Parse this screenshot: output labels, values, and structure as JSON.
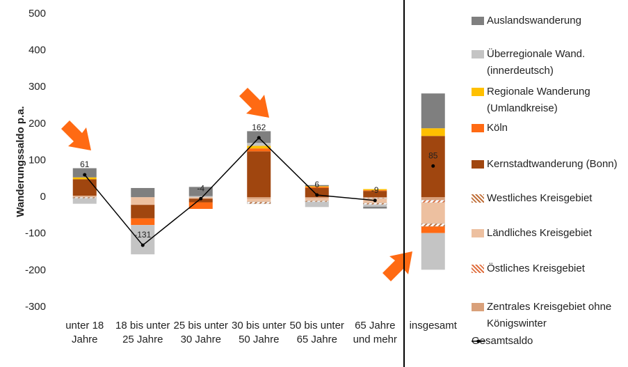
{
  "chart_data": {
    "type": "bar",
    "stacked": true,
    "y_label": "Wanderungssaldo p.a.",
    "categories": [
      "unter 18 Jahre",
      "18 bis unter 25 Jahre",
      "25 bis unter 30 Jahre",
      "30 bis unter 50 Jahre",
      "50 bis unter 65 Jahre",
      "65 Jahre und mehr",
      "insgesamt"
    ],
    "series": [
      {
        "name": "Auslandswanderung",
        "color": "#7f7f7f",
        "values": [
          25,
          25,
          25,
          32,
          3,
          -5,
          95
        ]
      },
      {
        "name": "Überregionale Wand. (innerdeutsch)",
        "color": "#c4c4c4",
        "values": [
          -15,
          -80,
          3,
          8,
          -14,
          -6,
          -100
        ]
      },
      {
        "name": "Regionale Wanderung (Umlandkreise)",
        "color": "#ffc000",
        "values": [
          5,
          0,
          0,
          7,
          2,
          3,
          21
        ]
      },
      {
        "name": "Köln",
        "color": "#ff6a13",
        "values": [
          0,
          -18,
          -18,
          8,
          3,
          2,
          -18
        ]
      },
      {
        "name": "Kernstadtwanderung (Bonn)",
        "color": "#a0460f",
        "values": [
          45,
          -37,
          -10,
          125,
          25,
          17,
          167
        ]
      },
      {
        "name": "Westliches Kreisgebiet",
        "color": "#c0703a",
        "hatch": true,
        "values": [
          -3,
          0,
          0,
          -5,
          -3,
          -4,
          -8
        ]
      },
      {
        "name": "Ländliches Kreisgebiet",
        "color": "#edc0a0",
        "values": [
          2,
          -21,
          -4,
          -8,
          -7,
          -12,
          -57
        ]
      },
      {
        "name": "Östliches Kreisgebiet",
        "color": "#e07040",
        "hatch": true,
        "values": [
          0,
          0,
          0,
          0,
          0,
          -2,
          -7
        ]
      },
      {
        "name": "Zentrales Kreisgebiet ohne Königswinter",
        "color": "#d9a07a",
        "values": [
          2,
          0,
          0,
          -5,
          -3,
          -2,
          -8
        ]
      }
    ],
    "line": {
      "name": "Gesamtsaldo",
      "color": "#000000",
      "values": [
        61,
        -131,
        -4,
        162,
        6,
        -9,
        85
      ]
    },
    "ylim": [
      -300,
      500
    ],
    "yticks": [
      -300,
      -200,
      -100,
      0,
      100,
      200,
      300,
      400,
      500
    ],
    "grid": false
  }
}
